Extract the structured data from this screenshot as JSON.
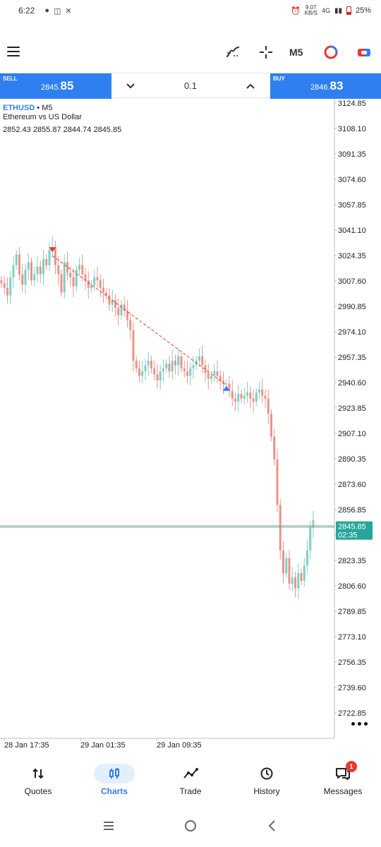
{
  "status_bar": {
    "time": "6:22",
    "network_speed": "9.07",
    "network_speed_unit": "KB/S",
    "network_type": "4G",
    "battery": "25%"
  },
  "toolbar": {
    "timeframe": "M5",
    "icons": [
      "menu-icon",
      "indicators-icon",
      "crosshair-icon",
      "objects-icon",
      "trade-toggle-icon"
    ]
  },
  "trade": {
    "sell_label": "SELL",
    "sell_price_main": "2845.",
    "sell_price_big": "85",
    "buy_label": "BUY",
    "buy_price_main": "2846.",
    "buy_price_big": "83",
    "lot": "0.1"
  },
  "chart": {
    "symbol": "ETHUSD",
    "timeframe_suffix": " • M5",
    "description": "Ethereum vs US Dollar",
    "ohlc": "2852.43 2855.87 2844.74 2845.85",
    "current_price": "2845.85",
    "countdown": "02:35",
    "colors": {
      "bull": "#7fcfc1",
      "bear": "#e8948a",
      "price_tag": "#26a69a",
      "accent": "#2f7ff0"
    }
  },
  "chart_data": {
    "type": "candlestick",
    "y_ticks": [
      "3124.85",
      "3108.10",
      "3091.35",
      "3074.60",
      "3057.85",
      "3041.10",
      "3024.35",
      "3007.60",
      "2990.85",
      "2974.10",
      "2957.35",
      "2940.60",
      "2923.85",
      "2907.10",
      "2890.35",
      "2873.60",
      "2856.85",
      "2840.10",
      "2823.35",
      "2806.60",
      "2789.85",
      "2773.10",
      "2756.35",
      "2739.60",
      "2722.85"
    ],
    "x_ticks": [
      "28 Jan 17:35",
      "29 Jan 01:35",
      "29 Jan 09:35"
    ],
    "ylim": [
      2712,
      3130
    ],
    "closes": [
      3006,
      3003,
      2998,
      3010,
      3018,
      3025,
      3012,
      3005,
      3015,
      3020,
      3008,
      3012,
      3017,
      3012,
      3022,
      3018,
      3028,
      3030,
      3018,
      3012,
      3000,
      3020,
      3013,
      3010,
      3004,
      3015,
      3018,
      3012,
      3008,
      3003,
      3005,
      3010,
      3008,
      3003,
      3000,
      2998,
      2992,
      2995,
      2990,
      2985,
      2992,
      2988,
      2982,
      2975,
      2955,
      2950,
      2945,
      2948,
      2952,
      2955,
      2950,
      2946,
      2942,
      2948,
      2950,
      2953,
      2948,
      2955,
      2952,
      2958,
      2950,
      2948,
      2945,
      2950,
      2952,
      2955,
      2958,
      2952,
      2947,
      2943,
      2945,
      2948,
      2945,
      2942,
      2940,
      2940,
      2935,
      2930,
      2928,
      2933,
      2930,
      2932,
      2934,
      2930,
      2928,
      2934,
      2936,
      2932,
      2930,
      2920,
      2905,
      2890,
      2860,
      2830,
      2815,
      2825,
      2808,
      2812,
      2805,
      2815,
      2810,
      2820,
      2830,
      2845,
      2850
    ],
    "arrows": [
      {
        "type": "sell",
        "price": 3027
      },
      {
        "type": "buy",
        "price": 2937
      }
    ]
  },
  "nav": {
    "items": [
      {
        "label": "Quotes"
      },
      {
        "label": "Charts"
      },
      {
        "label": "Trade"
      },
      {
        "label": "History"
      },
      {
        "label": "Messages"
      }
    ],
    "badge": "1"
  }
}
